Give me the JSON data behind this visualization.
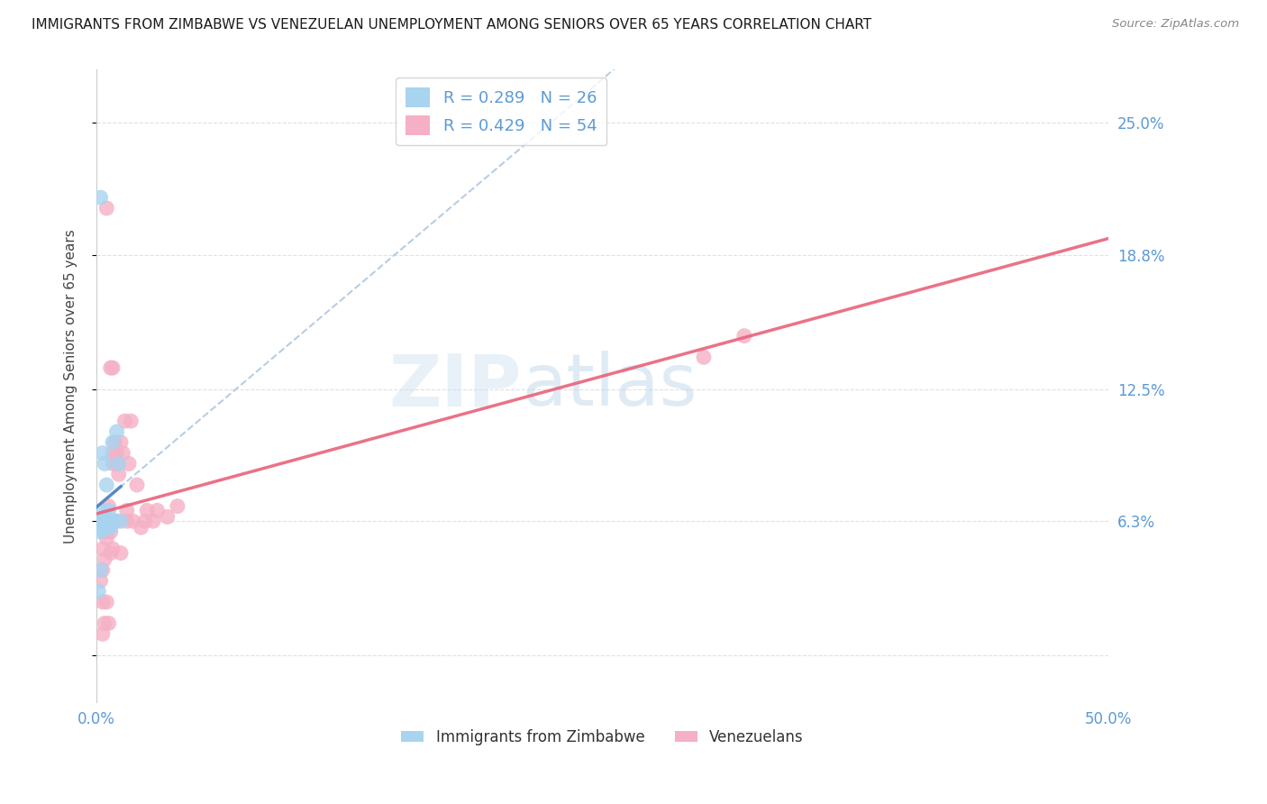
{
  "title": "IMMIGRANTS FROM ZIMBABWE VS VENEZUELAN UNEMPLOYMENT AMONG SENIORS OVER 65 YEARS CORRELATION CHART",
  "source": "Source: ZipAtlas.com",
  "ylabel": "Unemployment Among Seniors over 65 years",
  "xlim": [
    0.0,
    0.5
  ],
  "ylim": [
    -0.022,
    0.275
  ],
  "yticks": [
    0.0,
    0.063,
    0.125,
    0.188,
    0.25
  ],
  "ytick_labels": [
    "",
    "6.3%",
    "12.5%",
    "18.8%",
    "25.0%"
  ],
  "xtick_positions": [
    0.0,
    0.1,
    0.2,
    0.3,
    0.4,
    0.5
  ],
  "xtick_labels": [
    "0.0%",
    "",
    "",
    "",
    "",
    "50.0%"
  ],
  "zimbabwe_color": "#a8d4f0",
  "venezuelan_color": "#f5b0c5",
  "zimbabwe_line_color": "#4a7fc1",
  "venezuelan_line_color": "#e8637a",
  "dashed_line_color": "#b0c8e0",
  "legend_label_1": "R = 0.289   N = 26",
  "legend_label_2": "R = 0.429   N = 54",
  "bottom_legend_1": "Immigrants from Zimbabwe",
  "bottom_legend_2": "Venezuelans",
  "watermark_zip": "ZIP",
  "watermark_atlas": "atlas",
  "background_color": "#ffffff",
  "grid_color": "#e0e0e0",
  "title_fontsize": 11,
  "tick_label_color": "#5b9bd5",
  "tick_label_fontsize": 12,
  "zimbabwe_x": [
    0.001,
    0.001,
    0.002,
    0.002,
    0.002,
    0.002,
    0.003,
    0.003,
    0.003,
    0.003,
    0.004,
    0.004,
    0.004,
    0.005,
    0.005,
    0.005,
    0.006,
    0.006,
    0.007,
    0.007,
    0.008,
    0.009,
    0.01,
    0.011,
    0.012,
    0.001
  ],
  "zimbabwe_y": [
    0.063,
    0.06,
    0.215,
    0.063,
    0.058,
    0.04,
    0.095,
    0.068,
    0.063,
    0.06,
    0.09,
    0.063,
    0.065,
    0.08,
    0.063,
    0.06,
    0.063,
    0.068,
    0.06,
    0.063,
    0.1,
    0.063,
    0.105,
    0.09,
    0.063,
    0.03
  ],
  "venezuelan_x": [
    0.002,
    0.002,
    0.003,
    0.003,
    0.003,
    0.003,
    0.004,
    0.004,
    0.004,
    0.005,
    0.005,
    0.005,
    0.005,
    0.006,
    0.006,
    0.006,
    0.007,
    0.007,
    0.007,
    0.008,
    0.008,
    0.008,
    0.008,
    0.009,
    0.009,
    0.01,
    0.01,
    0.011,
    0.012,
    0.013,
    0.014,
    0.015,
    0.016,
    0.017,
    0.018,
    0.02,
    0.022,
    0.024,
    0.025,
    0.028,
    0.03,
    0.035,
    0.04,
    0.3,
    0.32,
    0.003,
    0.004,
    0.005,
    0.006,
    0.007,
    0.008,
    0.01,
    0.012,
    0.015
  ],
  "venezuelan_y": [
    0.063,
    0.035,
    0.063,
    0.04,
    0.025,
    0.01,
    0.063,
    0.058,
    0.015,
    0.063,
    0.06,
    0.025,
    0.21,
    0.063,
    0.06,
    0.015,
    0.063,
    0.058,
    0.135,
    0.095,
    0.09,
    0.063,
    0.135,
    0.1,
    0.063,
    0.095,
    0.09,
    0.085,
    0.1,
    0.095,
    0.11,
    0.068,
    0.09,
    0.11,
    0.063,
    0.08,
    0.06,
    0.063,
    0.068,
    0.063,
    0.068,
    0.065,
    0.07,
    0.14,
    0.15,
    0.05,
    0.045,
    0.055,
    0.07,
    0.048,
    0.05,
    0.063,
    0.048,
    0.063
  ]
}
